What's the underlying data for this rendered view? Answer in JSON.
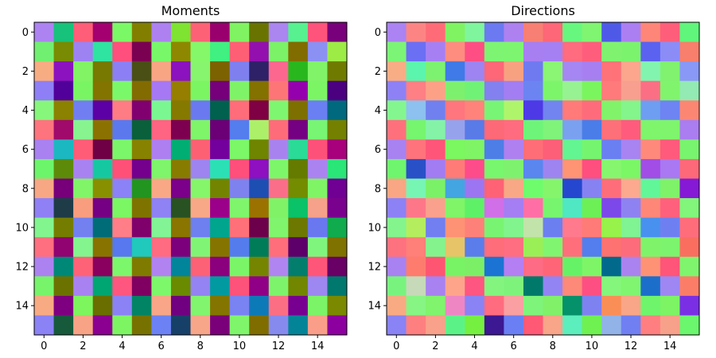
{
  "chart_data": [
    {
      "type": "heatmap",
      "title": "Moments",
      "xlabel": "",
      "ylabel": "",
      "grid": false,
      "x_range": [
        0,
        15
      ],
      "y_range": [
        0,
        15
      ],
      "x_ticks": [
        0,
        2,
        4,
        6,
        8,
        10,
        12,
        14
      ],
      "y_ticks": [
        0,
        2,
        4,
        6,
        8,
        10,
        12,
        14
      ],
      "cells": [
        [
          "#ac83f1",
          "#17c27b",
          "#fe5e77",
          "#a4006f",
          "#7bf866",
          "#827f00",
          "#ad81f0",
          "#7ee331",
          "#fd6176",
          "#99006e",
          "#80f362",
          "#697400",
          "#ab85f0",
          "#57f18f",
          "#fe537a",
          "#78007a"
        ],
        [
          "#71ef70",
          "#788b02",
          "#9d82f2",
          "#2fe4a0",
          "#ff4f7d",
          "#7a0052",
          "#78f869",
          "#8e8800",
          "#85f86a",
          "#40f081",
          "#ff5f75",
          "#9310ae",
          "#7bf267",
          "#816c00",
          "#8b90f3",
          "#9dec45"
        ],
        [
          "#f8ac82",
          "#8c12bf",
          "#82f364",
          "#777900",
          "#8c7ff5",
          "#4a4f15",
          "#f8a584",
          "#8b12be",
          "#87f56d",
          "#7c6200",
          "#7f7ff0",
          "#2e2168",
          "#fb678f",
          "#28b81d",
          "#81f368",
          "#6f7b00"
        ],
        [
          "#8e7ff7",
          "#51009a",
          "#79f563",
          "#837400",
          "#7bf86a",
          "#826b00",
          "#a778f4",
          "#957e00",
          "#7bf562",
          "#75007a",
          "#7ff368",
          "#837100",
          "#fd7576",
          "#9500ae",
          "#7cf564",
          "#4b0080"
        ],
        [
          "#86f77a",
          "#8a8200",
          "#717ef1",
          "#5c00a5",
          "#fe7c84",
          "#810070",
          "#7bf792",
          "#867900",
          "#6a79f0",
          "#00614e",
          "#ff6c7a",
          "#7f0043",
          "#7ff670",
          "#7d7000",
          "#6a7ff2",
          "#00697d"
        ],
        [
          "#fe747e",
          "#a00a6a",
          "#87f490",
          "#8b7200",
          "#5b79ed",
          "#09603a",
          "#ff6482",
          "#7d0050",
          "#7ff569",
          "#6b0076",
          "#547dee",
          "#acf069",
          "#fe6c7a",
          "#740082",
          "#78f572",
          "#748000"
        ],
        [
          "#a981f0",
          "#1cb8c1",
          "#ff5c77",
          "#700045",
          "#7bf66a",
          "#878200",
          "#ad7ff0",
          "#00ae73",
          "#fd6073",
          "#73009c",
          "#7bf767",
          "#6f8500",
          "#a883f0",
          "#2adb97",
          "#fe5179",
          "#a8007c"
        ],
        [
          "#6cf56a",
          "#5e8a0a",
          "#a982f1",
          "#16c8a2",
          "#ff5178",
          "#74008d",
          "#7ef56b",
          "#887c00",
          "#9d84f1",
          "#2ce0b5",
          "#ff4f7a",
          "#8e10c0",
          "#7df769",
          "#657b00",
          "#ab83f0",
          "#2ae578"
        ],
        [
          "#f8a784",
          "#77007a",
          "#80f568",
          "#899000",
          "#8a82f6",
          "#229420",
          "#f9a886",
          "#7b008a",
          "#85f56a",
          "#738500",
          "#7e82ef",
          "#1d4fb3",
          "#fb6e8a",
          "#738c00",
          "#7ff465",
          "#700093"
        ],
        [
          "#8f80f6",
          "#1d3c48",
          "#f99d7f",
          "#750083",
          "#7af762",
          "#7f7300",
          "#8e82f4",
          "#285222",
          "#f9a887",
          "#9b008a",
          "#7ff56b",
          "#9b7200",
          "#80f268",
          "#0ac267",
          "#f6a189",
          "#7a008e"
        ],
        [
          "#82f58e",
          "#757d00",
          "#7280f0",
          "#006c77",
          "#ff7e87",
          "#7f006b",
          "#82f495",
          "#897500",
          "#6e7ff0",
          "#00a58d",
          "#ff7078",
          "#6d004a",
          "#7ff46c",
          "#6c7800",
          "#6978ef",
          "#10ab4c"
        ],
        [
          "#ff6f7f",
          "#900371",
          "#84f48e",
          "#887300",
          "#5778ee",
          "#21c8bc",
          "#ff6b80",
          "#7c007c",
          "#80f575",
          "#857400",
          "#557cec",
          "#007c59",
          "#fe6e7b",
          "#5d0069",
          "#80f57e",
          "#807200"
        ],
        [
          "#ac82f1",
          "#008877",
          "#fe6277",
          "#8a005f",
          "#7cf66a",
          "#7f7b00",
          "#b183f1",
          "#00859b",
          "#fc6175",
          "#8a007d",
          "#7bf568",
          "#768500",
          "#b085f1",
          "#037e6d",
          "#fe5679",
          "#680066"
        ],
        [
          "#77f46a",
          "#6c7200",
          "#a882f1",
          "#00a671",
          "#ff5680",
          "#7f0061",
          "#7df86a",
          "#6a8a00",
          "#9483f2",
          "#009aa0",
          "#fd5279",
          "#900086",
          "#7df36b",
          "#728600",
          "#9c88f0",
          "#00786d"
        ],
        [
          "#f8ab82",
          "#7e0080",
          "#7df55c",
          "#6a6e00",
          "#8b82f5",
          "#008464",
          "#f8a687",
          "#700080",
          "#81f56d",
          "#847500",
          "#7983f1",
          "#0d7ab8",
          "#fc6e84",
          "#780091",
          "#7bf467",
          "#7a8900"
        ],
        [
          "#8a82f5",
          "#165a3b",
          "#f8a385",
          "#8b0090",
          "#7df563",
          "#777200",
          "#6c82f4",
          "#174068",
          "#f8a68a",
          "#7a007a",
          "#7ff56b",
          "#806d00",
          "#868aef",
          "#038597",
          "#fa9e89",
          "#8d00a0"
        ]
      ]
    },
    {
      "type": "heatmap",
      "title": "Directions",
      "xlabel": "",
      "ylabel": "",
      "grid": false,
      "x_range": [
        0,
        15
      ],
      "y_range": [
        0,
        15
      ],
      "x_ticks": [
        0,
        2,
        4,
        6,
        8,
        10,
        12,
        14
      ],
      "y_ticks": [
        0,
        2,
        4,
        6,
        8,
        10,
        12,
        14
      ],
      "cells": [
        [
          "#ab83f2",
          "#fc8584",
          "#ff6c77",
          "#80f363",
          "#7ff59e",
          "#6b7af1",
          "#ad81f0",
          "#f77f73",
          "#fd6777",
          "#67f77e",
          "#7ff571",
          "#4e5ae7",
          "#ab7ff2",
          "#fd8679",
          "#ff5e7a",
          "#5ff67b"
        ],
        [
          "#7cf577",
          "#6b6ff4",
          "#a680f2",
          "#fe8d80",
          "#ff4e83",
          "#7ef572",
          "#7ef570",
          "#a77ff1",
          "#a580f2",
          "#ff6b7f",
          "#fe5e7c",
          "#7ff370",
          "#7cf36d",
          "#5a62ef",
          "#8b8cf5",
          "#f87f6b"
        ],
        [
          "#f8ad84",
          "#5bf5ad",
          "#7df270",
          "#3f7ae8",
          "#9d84f2",
          "#fd6777",
          "#f8a181",
          "#6f7af1",
          "#8bf574",
          "#a586f3",
          "#a77ff1",
          "#ff7277",
          "#fca68e",
          "#82f4b0",
          "#80f270",
          "#8998f6"
        ],
        [
          "#8e81f6",
          "#fe7f84",
          "#fda186",
          "#7df16d",
          "#70f277",
          "#8380f0",
          "#a37ef2",
          "#6c84f1",
          "#7df56a",
          "#97f292",
          "#7bf55e",
          "#fe7a7b",
          "#f89f8f",
          "#fb6f84",
          "#80f46c",
          "#93eab2"
        ],
        [
          "#84f68f",
          "#8cc1f0",
          "#7080ef",
          "#ff767e",
          "#ff837b",
          "#78f574",
          "#aff56b",
          "#4d39e6",
          "#7284f0",
          "#ff7a78",
          "#fe6c7b",
          "#81f36a",
          "#83f58a",
          "#6e9ef1",
          "#6d84f2",
          "#fb8773"
        ],
        [
          "#fe717c",
          "#76f56e",
          "#84f3a7",
          "#97a2ec",
          "#587be8",
          "#fe6978",
          "#ff6c7f",
          "#6ef478",
          "#7ff37a",
          "#79a1f0",
          "#4a7de8",
          "#fe7079",
          "#ff5c7d",
          "#7ef56b",
          "#7ef56c",
          "#aa7df0"
        ],
        [
          "#a882f1",
          "#ff737c",
          "#fe5578",
          "#7bf75f",
          "#7ff465",
          "#4d7ee7",
          "#af80f0",
          "#ff6e76",
          "#fd5e78",
          "#63f591",
          "#75f56f",
          "#6a7ff1",
          "#a784f2",
          "#ff8a7c",
          "#ff5a7b",
          "#78f46e"
        ],
        [
          "#6ff56e",
          "#2a50c8",
          "#a27cf2",
          "#ff7b78",
          "#fe4c8b",
          "#78f66d",
          "#7ef16f",
          "#5a86f0",
          "#9e84f0",
          "#fe9474",
          "#ff4f7f",
          "#86f66f",
          "#7bf766",
          "#a14de6",
          "#a978f2",
          "#fd6979"
        ],
        [
          "#f8a683",
          "#77f5b2",
          "#7bf168",
          "#43a5e1",
          "#9c76f2",
          "#fe6274",
          "#f8a884",
          "#6efc6c",
          "#85f56c",
          "#2547d0",
          "#8782f2",
          "#fe6d7a",
          "#fca98f",
          "#61f697",
          "#7ef268",
          "#8519d6"
        ],
        [
          "#8d81f6",
          "#fe7789",
          "#f9a18c",
          "#7ff567",
          "#5ef167",
          "#d16fe8",
          "#a47ef2",
          "#ff6fa6",
          "#78f56f",
          "#4fe8c2",
          "#6df056",
          "#7c48ea",
          "#8e82f3",
          "#fe8778",
          "#ff617d",
          "#81f67a"
        ],
        [
          "#84f48d",
          "#b4ee5e",
          "#717ff0",
          "#fe9274",
          "#fe8179",
          "#79f472",
          "#82f48d",
          "#c2e3a9",
          "#6c7ff0",
          "#ff7a8d",
          "#ff7b77",
          "#97f249",
          "#80f392",
          "#4991ee",
          "#6e80f1",
          "#ff6d7b"
        ],
        [
          "#fe717e",
          "#ff7f79",
          "#84f38d",
          "#e7c467",
          "#5b7deb",
          "#fd6d7a",
          "#ff6e81",
          "#9aef57",
          "#80f570",
          "#ff6f7b",
          "#547ded",
          "#fe7271",
          "#fd6c7b",
          "#7ff36a",
          "#7df46d",
          "#fa6e60"
        ],
        [
          "#a882f1",
          "#fd7c6d",
          "#fe5672",
          "#78f366",
          "#7bf066",
          "#1b74d3",
          "#b47ff2",
          "#fd6b84",
          "#ff6576",
          "#66f266",
          "#7ef567",
          "#016a8c",
          "#aa83f1",
          "#fe9274",
          "#ff5578",
          "#7ef56d"
        ],
        [
          "#78f47e",
          "#c6d9b8",
          "#a882f1",
          "#fea48b",
          "#ff5581",
          "#83f57e",
          "#7ef37b",
          "#00796b",
          "#9384f4",
          "#fd8979",
          "#fe4f83",
          "#84f67b",
          "#80f56f",
          "#1b6fcb",
          "#9e87f2",
          "#fc7d67"
        ],
        [
          "#f8aa83",
          "#86f583",
          "#80f46c",
          "#ef86c4",
          "#8a83f5",
          "#ff6c7f",
          "#fa9fa2",
          "#7ff47b",
          "#80f169",
          "#05916a",
          "#7e82f1",
          "#fa8e57",
          "#f9a587",
          "#6ff56c",
          "#7cf464",
          "#7a2fe4"
        ],
        [
          "#8983f5",
          "#fe7f80",
          "#f9a18a",
          "#5bf388",
          "#76f040",
          "#3c1892",
          "#6a7ff4",
          "#ff5976",
          "#f8a589",
          "#5ceebc",
          "#6ff151",
          "#91b3e8",
          "#707ff2",
          "#ff7f80",
          "#f7a08a",
          "#6af66d"
        ]
      ]
    }
  ]
}
